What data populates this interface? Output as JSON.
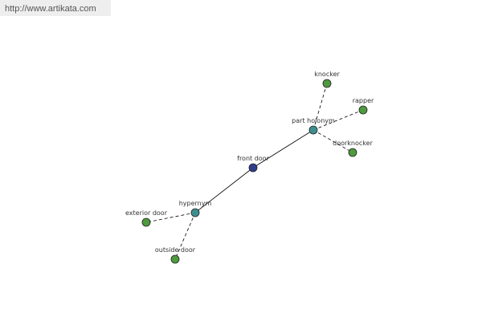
{
  "header": {
    "url": "http://www.artikata.com"
  },
  "nodes": [
    {
      "label": "front door"
    },
    {
      "label": "part holonym"
    },
    {
      "label": "hypernym"
    },
    {
      "label": "knocker"
    },
    {
      "label": "rapper"
    },
    {
      "label": "doorknocker"
    },
    {
      "label": "exterior door"
    },
    {
      "label": "outside door"
    }
  ]
}
